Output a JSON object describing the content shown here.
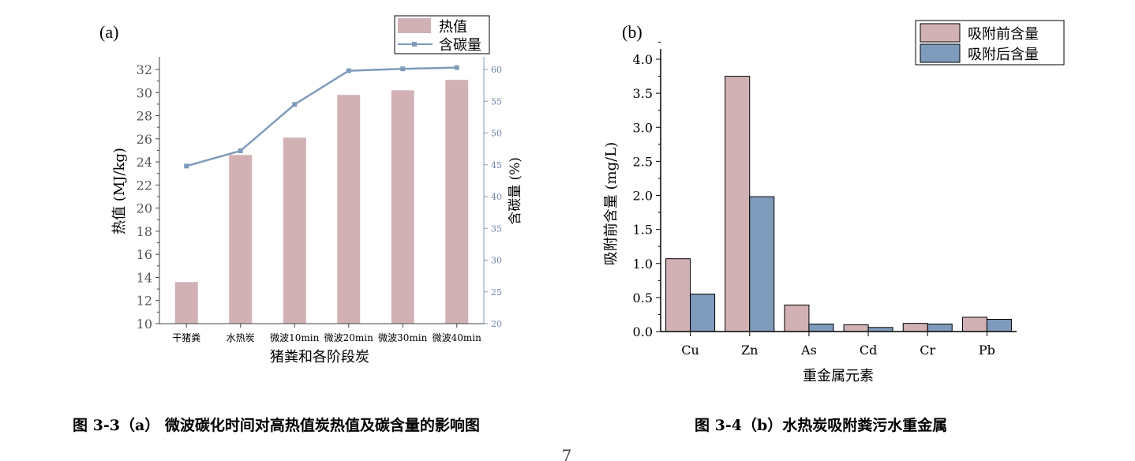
{
  "chart_data": [
    {
      "panel_label": "(a)",
      "type": "bar",
      "categories": [
        "干猪粪",
        "水热炭",
        "微波10min",
        "微波20min",
        "微波30min",
        "微波40min"
      ],
      "xlabel": "猪粪和各阶段炭",
      "ylabel": "热值 (MJ/kg)",
      "ylim": [
        10,
        32
      ],
      "yticks": [
        10,
        12,
        14,
        16,
        18,
        20,
        22,
        24,
        26,
        28,
        30,
        32
      ],
      "y2label": "含碳量 (%)",
      "y2lim": [
        20,
        60
      ],
      "y2ticks": [
        20,
        25,
        30,
        35,
        40,
        45,
        50,
        55,
        60
      ],
      "series": [
        {
          "name": "热值",
          "type": "bar",
          "color": "#d2b1b5",
          "values": [
            13.6,
            24.6,
            26.1,
            29.8,
            30.2,
            31.1
          ]
        },
        {
          "name": "含碳量",
          "type": "line",
          "axis": "right",
          "color": "#7f9bbb",
          "values": [
            44.8,
            47.2,
            54.5,
            59.8,
            60.1,
            60.3
          ]
        }
      ],
      "legend_position": "top-right"
    },
    {
      "panel_label": "(b)",
      "type": "bar",
      "categories": [
        "Cu",
        "Zn",
        "As",
        "Cd",
        "Cr",
        "Pb"
      ],
      "xlabel": "重金属元素",
      "ylabel": "吸附前含量 (mg/L)",
      "ylim": [
        0,
        4.2
      ],
      "yticks": [
        "0.0",
        "0.5",
        "1.0",
        "1.5",
        "2.0",
        "2.5",
        "3.0",
        "3.5",
        "4.0"
      ],
      "series": [
        {
          "name": "吸附前含量",
          "color": "#d2b1b5",
          "values": [
            1.07,
            3.75,
            0.39,
            0.1,
            0.12,
            0.21
          ]
        },
        {
          "name": "吸附后含量",
          "color": "#7f9bbb",
          "values": [
            0.55,
            1.98,
            0.11,
            0.06,
            0.11,
            0.18
          ]
        }
      ],
      "legend_position": "top-right"
    }
  ],
  "captions": {
    "a": "图 3-3（a）  微波碳化时间对高热值炭热值及碳含量的影响图",
    "b": "图 3-4（b）水热炭吸附粪污水重金属"
  },
  "page_number": "7"
}
